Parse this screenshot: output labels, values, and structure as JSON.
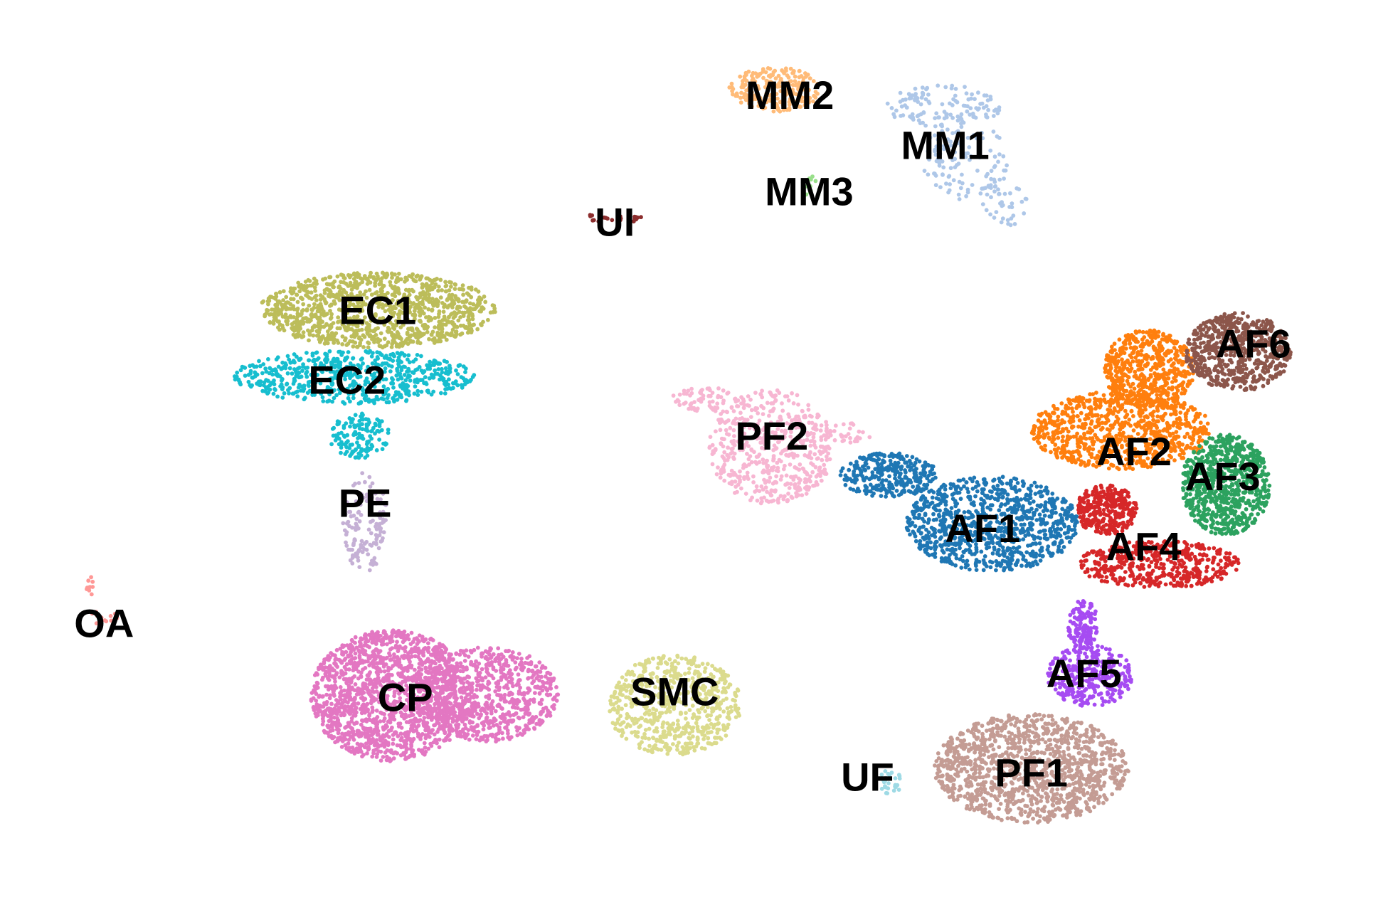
{
  "chart_data": {
    "type": "scatter",
    "title": "",
    "xlabel": "",
    "ylabel": "",
    "legend": "none",
    "grid": false,
    "axes": "none",
    "xlim": [
      0,
      100
    ],
    "ylim": [
      0,
      66
    ],
    "clusters": [
      {
        "name": "MM2",
        "color": "#ffbb78",
        "label_pos": [
          56.9,
          59.2
        ],
        "n": 220,
        "blobs": [
          [
            55.8,
            59.6,
            3.3,
            1.6,
            1.0
          ]
        ]
      },
      {
        "name": "MM1",
        "color": "#aec7e8",
        "label_pos": [
          68.1,
          55.6
        ],
        "n": 280,
        "blobs": [
          [
            68.0,
            58.4,
            4.2,
            1.5,
            0.45
          ],
          [
            69.5,
            54.5,
            3.2,
            2.8,
            0.4
          ],
          [
            72.2,
            51.5,
            1.8,
            1.8,
            0.15
          ]
        ]
      },
      {
        "name": "MM3",
        "color": "#98df8a",
        "label_pos": [
          58.3,
          52.3
        ],
        "n": 14,
        "blobs": [
          [
            58.5,
            52.7,
            0.9,
            0.8,
            1.0
          ]
        ]
      },
      {
        "name": "UI",
        "color": "#8c2d2d",
        "label_pos": [
          44.3,
          50.1
        ],
        "n": 24,
        "blobs": [
          [
            44.4,
            50.4,
            2.7,
            0.3,
            1.0
          ]
        ]
      },
      {
        "name": "EC1",
        "color": "#bcbd5a",
        "label_pos": [
          27.2,
          43.8
        ],
        "n": 1100,
        "blobs": [
          [
            27.2,
            43.8,
            8.5,
            2.7,
            1.0
          ]
        ]
      },
      {
        "name": "EC2",
        "color": "#17becf",
        "label_pos": [
          25.0,
          38.8
        ],
        "n": 760,
        "blobs": [
          [
            25.5,
            39.0,
            8.8,
            1.9,
            0.82
          ],
          [
            25.9,
            34.8,
            2.2,
            1.6,
            0.18
          ]
        ]
      },
      {
        "name": "PE",
        "color": "#c5b0d5",
        "label_pos": [
          26.3,
          30.0
        ],
        "n": 140,
        "blobs": [
          [
            26.3,
            28.6,
            1.6,
            3.6,
            1.0
          ]
        ]
      },
      {
        "name": "PF2",
        "color": "#f7b6d2",
        "label_pos": [
          55.6,
          34.8
        ],
        "n": 620,
        "blobs": [
          [
            55.6,
            34.0,
            4.5,
            4.1,
            0.85
          ],
          [
            50.8,
            37.4,
            2.4,
            0.9,
            0.1
          ],
          [
            61.0,
            35.0,
            1.8,
            0.8,
            0.05
          ]
        ]
      },
      {
        "name": "AF1",
        "color": "#1f77b4",
        "label_pos": [
          70.8,
          28.2
        ],
        "n": 1200,
        "blobs": [
          [
            71.5,
            28.5,
            6.2,
            3.4,
            0.75
          ],
          [
            64.0,
            32.0,
            3.5,
            1.6,
            0.25
          ]
        ]
      },
      {
        "name": "AF2",
        "color": "#ff7f0e",
        "label_pos": [
          81.7,
          33.7
        ],
        "n": 1400,
        "blobs": [
          [
            80.8,
            35.2,
            6.5,
            2.8,
            0.6
          ],
          [
            82.8,
            39.6,
            3.3,
            2.8,
            0.4
          ]
        ]
      },
      {
        "name": "AF6",
        "color": "#8c564b",
        "label_pos": [
          90.3,
          41.4
        ],
        "n": 620,
        "blobs": [
          [
            89.2,
            40.8,
            3.8,
            2.8,
            1.0
          ]
        ]
      },
      {
        "name": "AF3",
        "color": "#2ca25f",
        "label_pos": [
          88.1,
          31.9
        ],
        "n": 750,
        "blobs": [
          [
            88.3,
            31.3,
            3.2,
            3.6,
            1.0
          ]
        ]
      },
      {
        "name": "AF4",
        "color": "#d62728",
        "label_pos": [
          82.4,
          26.9
        ],
        "n": 760,
        "blobs": [
          [
            83.5,
            25.6,
            5.8,
            1.7,
            0.6
          ],
          [
            79.7,
            29.5,
            2.2,
            1.8,
            0.4
          ]
        ]
      },
      {
        "name": "OA",
        "color": "#ff9896",
        "label_pos": [
          7.5,
          21.4
        ],
        "n": 22,
        "blobs": [
          [
            7.3,
            21.5,
            1.2,
            1.2,
            0.6
          ],
          [
            6.6,
            24.0,
            0.4,
            0.7,
            0.4
          ]
        ]
      },
      {
        "name": "CP",
        "color": "#e377c2",
        "label_pos": [
          29.2,
          16.1
        ],
        "n": 2300,
        "blobs": [
          [
            28.2,
            16.2,
            5.8,
            4.7,
            0.68
          ],
          [
            35.2,
            16.3,
            5.0,
            3.4,
            0.32
          ]
        ]
      },
      {
        "name": "SMC",
        "color": "#dbdb8d",
        "label_pos": [
          48.6,
          16.5
        ],
        "n": 650,
        "blobs": [
          [
            48.6,
            15.5,
            4.8,
            3.6,
            1.0
          ]
        ]
      },
      {
        "name": "AF5",
        "color": "#a64cf2",
        "label_pos": [
          78.1,
          17.8
        ],
        "n": 440,
        "blobs": [
          [
            78.5,
            17.6,
            3.1,
            2.2,
            0.7
          ],
          [
            78.0,
            21.3,
            1.1,
            1.8,
            0.3
          ]
        ]
      },
      {
        "name": "PF1",
        "color": "#c49c94",
        "label_pos": [
          74.3,
          10.7
        ],
        "n": 1250,
        "blobs": [
          [
            74.3,
            11.0,
            7.0,
            3.9,
            1.0
          ]
        ]
      },
      {
        "name": "UF",
        "color": "#9edae5",
        "label_pos": [
          62.5,
          10.4
        ],
        "n": 28,
        "blobs": [
          [
            64.2,
            10.0,
            0.9,
            0.9,
            1.0
          ]
        ]
      }
    ]
  }
}
